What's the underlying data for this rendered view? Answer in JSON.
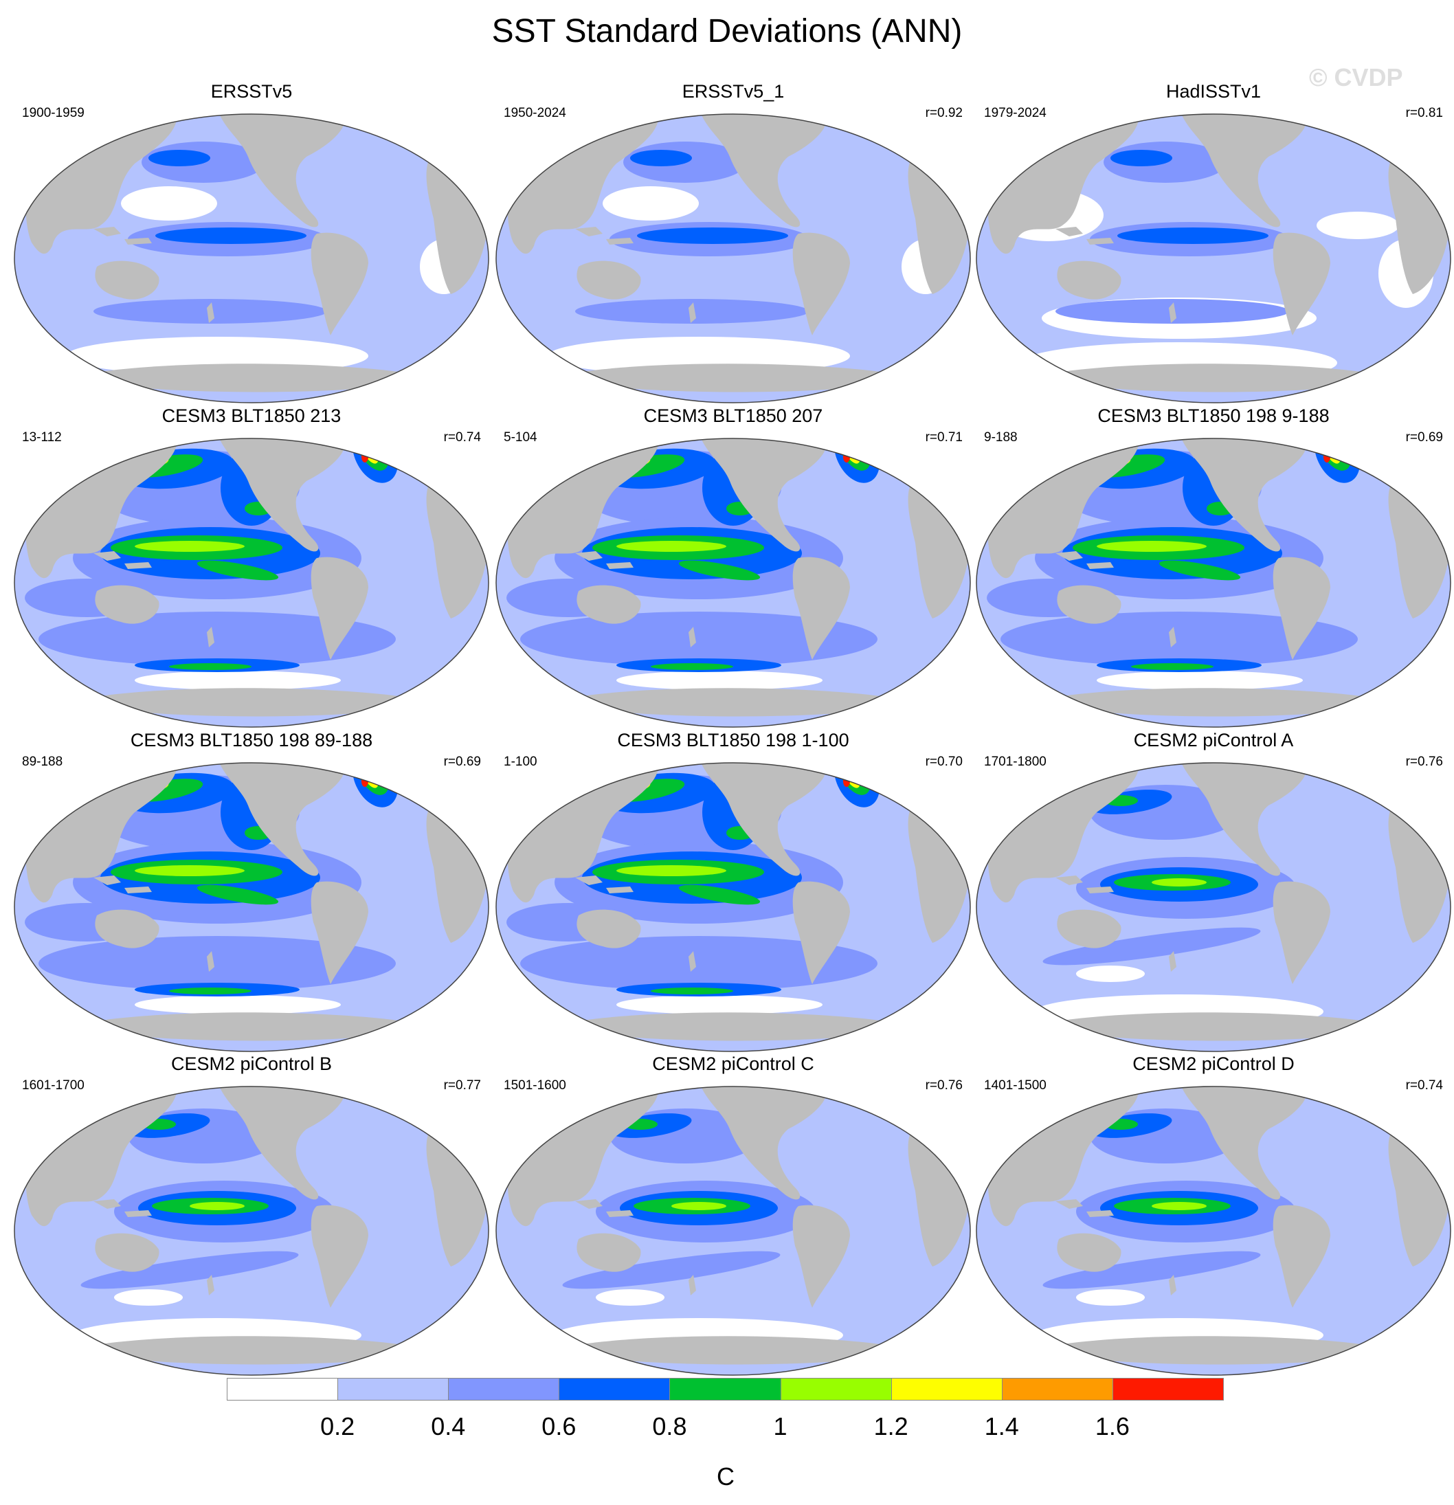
{
  "title": "SST Standard Deviations (ANN)",
  "watermark": "© CVDP",
  "colorbar": {
    "colors": [
      "#ffffff",
      "#b4c3fe",
      "#8196fe",
      "#0060fe",
      "#00c030",
      "#98fe00",
      "#fefe00",
      "#fe9b00",
      "#fe1a00"
    ],
    "labels": [
      "0.2",
      "0.4",
      "0.6",
      "0.8",
      "1",
      "1.2",
      "1.4",
      "1.6"
    ],
    "units": "C"
  },
  "land_color": "#bebebe",
  "panels": [
    {
      "title": "ERSSTv5",
      "period": "1900-1959",
      "r": "",
      "pattern": "obs"
    },
    {
      "title": "ERSSTv5_1",
      "period": "1950-2024",
      "r": "r=0.92",
      "pattern": "obs"
    },
    {
      "title": "HadISSTv1",
      "period": "1979-2024",
      "r": "r=0.81",
      "pattern": "obs2"
    },
    {
      "title": "CESM3 BLT1850 213",
      "period": "13-112",
      "r": "r=0.74",
      "pattern": "cesm3"
    },
    {
      "title": "CESM3 BLT1850 207",
      "period": "5-104",
      "r": "r=0.71",
      "pattern": "cesm3"
    },
    {
      "title": "CESM3 BLT1850 198 9-188",
      "period": "9-188",
      "r": "r=0.69",
      "pattern": "cesm3"
    },
    {
      "title": "CESM3 BLT1850 198 89-188",
      "period": "89-188",
      "r": "r=0.69",
      "pattern": "cesm3"
    },
    {
      "title": "CESM3 BLT1850 198 1-100",
      "period": "1-100",
      "r": "r=0.70",
      "pattern": "cesm3"
    },
    {
      "title": "CESM2 piControl A",
      "period": "1701-1800",
      "r": "r=0.76",
      "pattern": "cesm2"
    },
    {
      "title": "CESM2 piControl B",
      "period": "1601-1700",
      "r": "r=0.77",
      "pattern": "cesm2"
    },
    {
      "title": "CESM2 piControl C",
      "period": "1501-1600",
      "r": "r=0.76",
      "pattern": "cesm2"
    },
    {
      "title": "CESM2 piControl D",
      "period": "1401-1500",
      "r": "r=0.74",
      "pattern": "cesm2"
    }
  ]
}
